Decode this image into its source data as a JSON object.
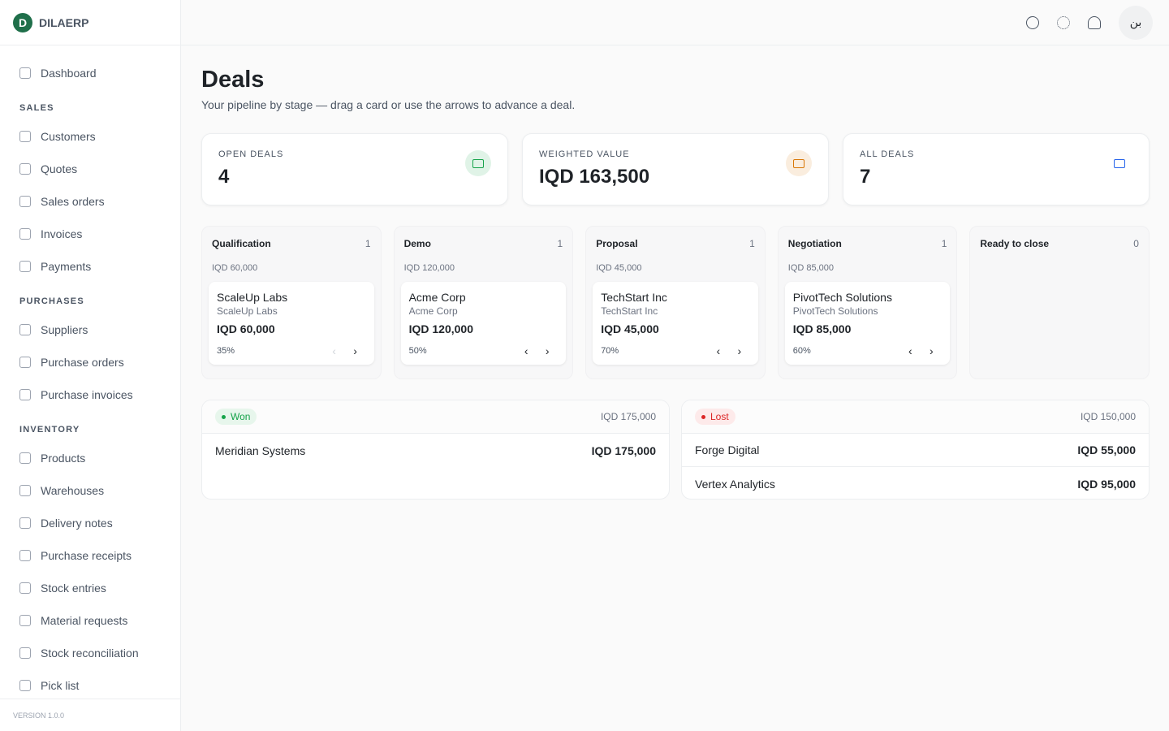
{
  "brand": "DILAERP",
  "nav": [
    {
      "items": [
        "Dashboard"
      ]
    },
    {
      "heading": "SALES",
      "items": [
        "Customers",
        "Quotes",
        "Sales orders",
        "Invoices",
        "Payments"
      ]
    },
    {
      "heading": "PURCHASES",
      "items": [
        "Suppliers",
        "Purchase orders",
        "Purchase invoices"
      ]
    },
    {
      "heading": "INVENTORY",
      "items": [
        "Products",
        "Warehouses",
        "Delivery notes",
        "Purchase receipts",
        "Stock entries",
        "Material requests",
        "Stock reconciliation",
        "Pick list"
      ]
    }
  ],
  "version": "VERSION 1.0.0",
  "avatar": "بن",
  "page": {
    "title": "Deals",
    "subtitle": "Your pipeline by stage — drag a card or use the arrows to advance a deal."
  },
  "stats": [
    {
      "label": "OPEN DEALS",
      "value": "4",
      "color": "#16a34a"
    },
    {
      "label": "WEIGHTED VALUE",
      "value": "IQD 163,500",
      "color": "#d97706"
    },
    {
      "label": "ALL DEALS",
      "value": "7",
      "color": "#2563eb"
    }
  ],
  "stages": [
    {
      "name": "Qualification",
      "count": "1",
      "total": "IQD 60,000",
      "cards": [
        {
          "name": "ScaleUp Labs",
          "company": "ScaleUp Labs",
          "value": "IQD 60,000",
          "probability": "35%"
        }
      ]
    },
    {
      "name": "Demo",
      "count": "1",
      "total": "IQD 120,000",
      "cards": [
        {
          "name": "Acme Corp",
          "company": "Acme Corp",
          "value": "IQD 120,000",
          "probability": "50%"
        }
      ]
    },
    {
      "name": "Proposal",
      "count": "1",
      "total": "IQD 45,000",
      "cards": [
        {
          "name": "TechStart Inc",
          "company": "TechStart Inc",
          "value": "IQD 45,000",
          "probability": "70%"
        }
      ]
    },
    {
      "name": "Negotiation",
      "count": "1",
      "total": "IQD 85,000",
      "cards": [
        {
          "name": "PivotTech Solutions",
          "company": "PivotTech Solutions",
          "value": "IQD 85,000",
          "probability": "60%"
        }
      ]
    },
    {
      "name": "Ready to close",
      "count": "0",
      "cards": []
    }
  ],
  "closed": [
    {
      "badge": "Won",
      "total": "IQD 175,000",
      "color": "#16a34a",
      "bg": "#e7f6ec",
      "rows": [
        {
          "name": "Meridian Systems",
          "value": "IQD 175,000"
        }
      ]
    },
    {
      "badge": "Lost",
      "total": "IQD 150,000",
      "color": "#dc2626",
      "bg": "#fdeaea",
      "rows": [
        {
          "name": "Forge Digital",
          "value": "IQD 55,000"
        },
        {
          "name": "Vertex Analytics",
          "value": "IQD 95,000"
        }
      ]
    }
  ]
}
